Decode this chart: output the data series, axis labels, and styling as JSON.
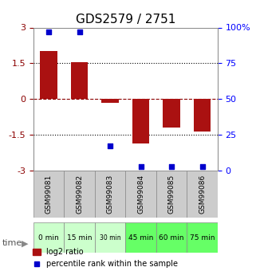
{
  "title": "GDS2579 / 2751",
  "samples": [
    "GSM99081",
    "GSM99082",
    "GSM99083",
    "GSM99084",
    "GSM99085",
    "GSM99086"
  ],
  "time_labels": [
    "0 min",
    "15 min",
    "30 min",
    "45 min",
    "60 min",
    "75 min"
  ],
  "time_colors": [
    "#ccffcc",
    "#ccffcc",
    "#ccffcc",
    "#66ff66",
    "#66ff66",
    "#66ff66"
  ],
  "log2_ratio": [
    2.0,
    1.55,
    -0.15,
    -1.85,
    -1.2,
    -1.35
  ],
  "percentile_rank": [
    97,
    97,
    17,
    3,
    3,
    3
  ],
  "bar_color": "#aa1111",
  "dot_color": "#0000cc",
  "ylim_left": [
    -3,
    3
  ],
  "ylim_right": [
    0,
    100
  ],
  "yticks_left": [
    -3,
    -1.5,
    0,
    1.5,
    3
  ],
  "yticks_right": [
    0,
    25,
    50,
    75,
    100
  ],
  "dotted_lines": [
    -1.5,
    1.5
  ],
  "dashed_line_y": 0,
  "background_color": "#ffffff",
  "sample_box_color": "#cccccc",
  "title_fontsize": 11,
  "tick_fontsize": 8
}
